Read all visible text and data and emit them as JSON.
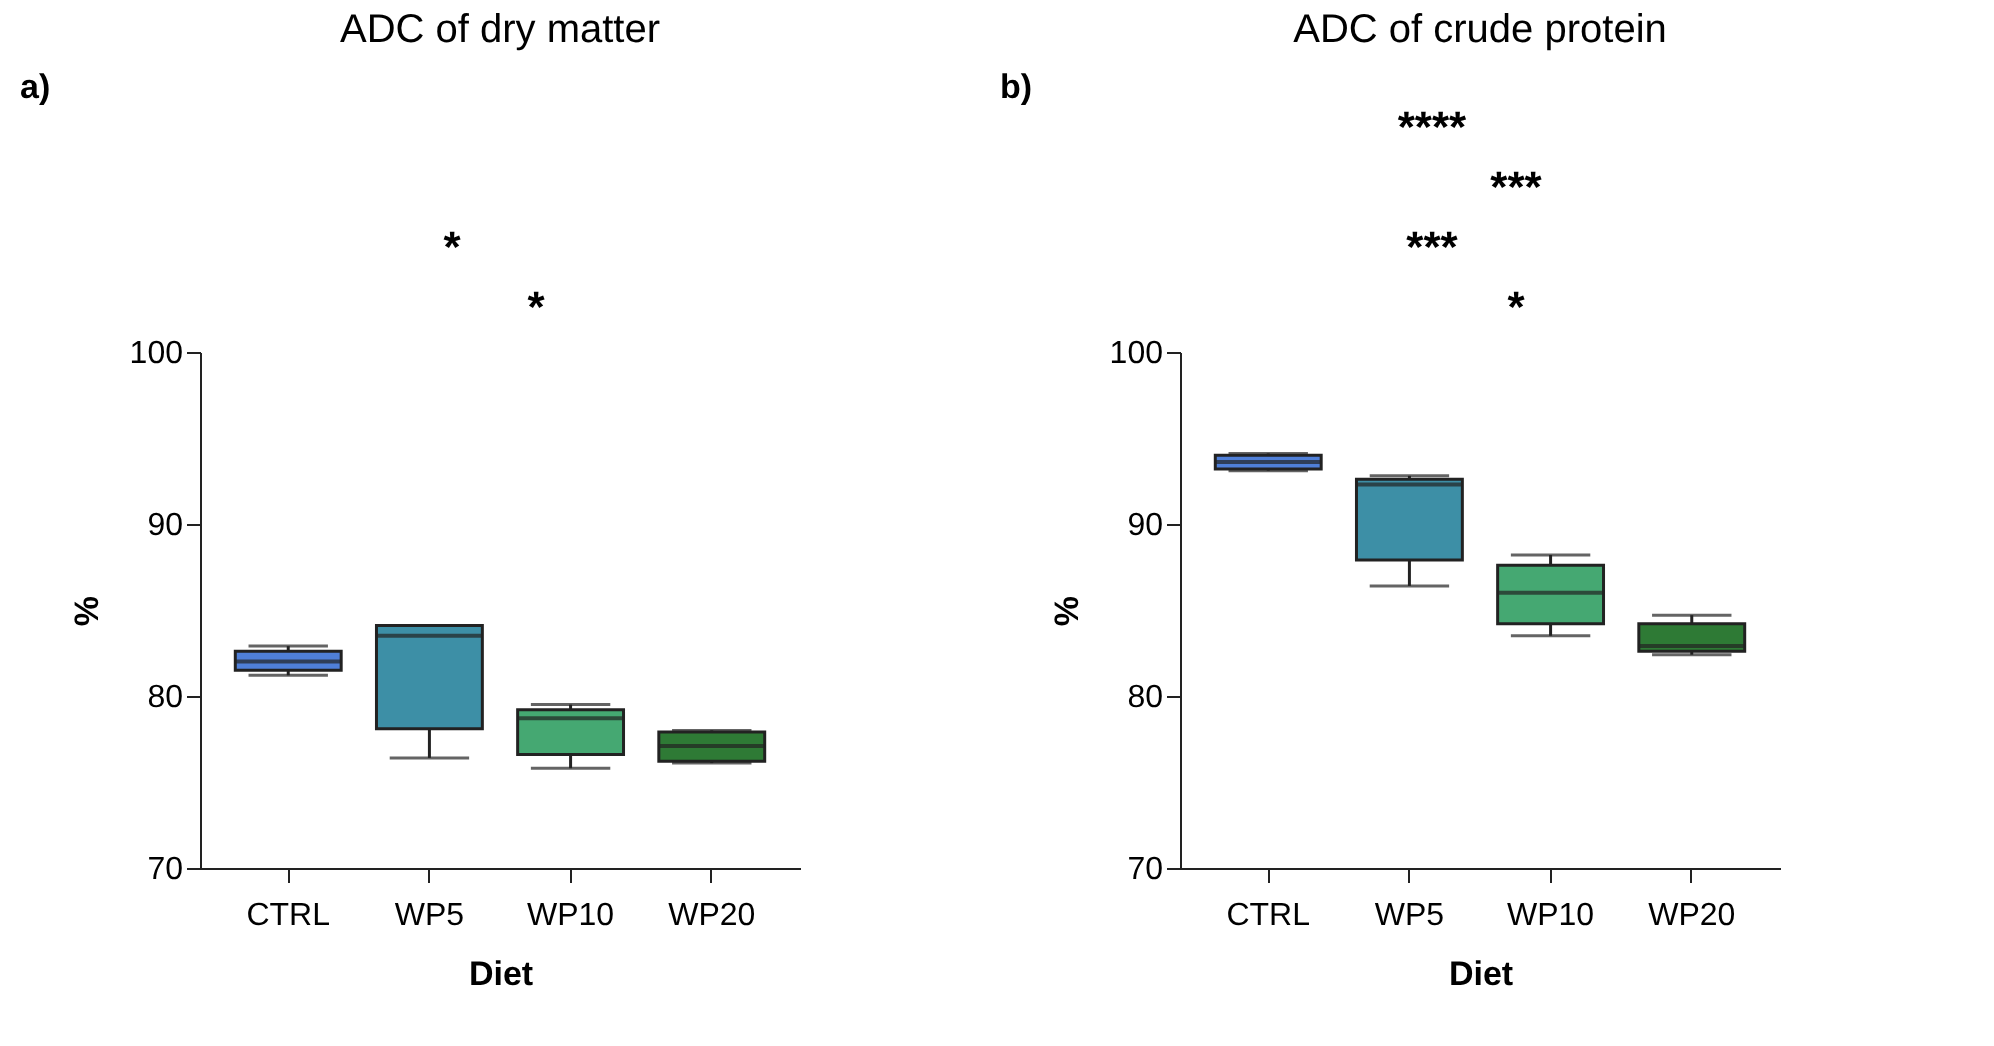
{
  "chart_data": [
    {
      "type": "box",
      "title": "ADC of dry matter",
      "subtitle": "a)",
      "xlabel": "Diet",
      "ylabel": "%",
      "categories": [
        "CTRL",
        "WP5",
        "WP10",
        "WP20"
      ],
      "colors": [
        "#4f7fd8",
        "#3d8fa6",
        "#45a872",
        "#2e7a35"
      ],
      "ylim": [
        70,
        100
      ],
      "yticks": [
        70,
        80,
        90,
        100
      ],
      "grid": false,
      "boxes": [
        {
          "low": 81.2,
          "q1": 81.5,
          "median": 82.0,
          "q3": 82.6,
          "high": 82.9
        },
        {
          "low": 76.4,
          "q1": 78.1,
          "median": 83.5,
          "q3": 84.1,
          "high": 84.1
        },
        {
          "low": 75.8,
          "q1": 76.6,
          "median": 78.7,
          "q3": 79.2,
          "high": 79.5
        },
        {
          "low": 76.1,
          "q1": 76.2,
          "median": 77.1,
          "q3": 77.9,
          "high": 78.0
        }
      ],
      "annotations": [
        "*",
        "*"
      ]
    },
    {
      "type": "box",
      "title": "ADC of crude protein",
      "subtitle": "b)",
      "xlabel": "Diet",
      "ylabel": "%",
      "categories": [
        "CTRL",
        "WP5",
        "WP10",
        "WP20"
      ],
      "colors": [
        "#4f7fd8",
        "#3d8fa6",
        "#45a872",
        "#2e7a35"
      ],
      "ylim": [
        70,
        100
      ],
      "yticks": [
        70,
        80,
        90,
        100
      ],
      "grid": false,
      "boxes": [
        {
          "low": 93.1,
          "q1": 93.2,
          "median": 93.6,
          "q3": 94.0,
          "high": 94.1
        },
        {
          "low": 86.4,
          "q1": 87.9,
          "median": 92.3,
          "q3": 92.6,
          "high": 92.8
        },
        {
          "low": 83.5,
          "q1": 84.2,
          "median": 86.0,
          "q3": 87.6,
          "high": 88.2
        },
        {
          "low": 82.4,
          "q1": 82.6,
          "median": 82.9,
          "q3": 84.2,
          "high": 84.7
        }
      ],
      "annotations": [
        "****",
        "***",
        "***",
        "*"
      ]
    }
  ]
}
